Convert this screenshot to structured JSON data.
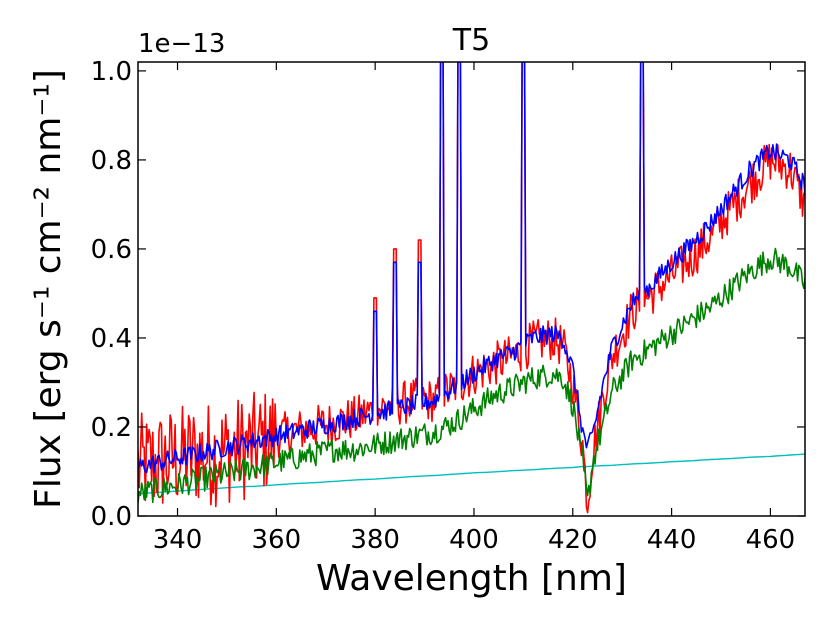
{
  "chart_data": {
    "type": "line",
    "title": "T5",
    "xlabel": "Wavelength [nm]",
    "ylabel": "Flux [erg s⁻¹ cm⁻² nm⁻¹]",
    "y_offset_label": "1e−13",
    "xlim": [
      332,
      467
    ],
    "ylim": [
      0.0,
      1.02
    ],
    "xticks": [
      340,
      360,
      380,
      400,
      420,
      440,
      460
    ],
    "xtick_labels": [
      "340",
      "360",
      "380",
      "400",
      "420",
      "440",
      "460"
    ],
    "yticks": [
      0.0,
      0.2,
      0.4,
      0.6,
      0.8,
      1.0
    ],
    "ytick_labels": [
      "0.0",
      "0.2",
      "0.4",
      "0.6",
      "0.8",
      "1.0"
    ],
    "grid": false,
    "x": [
      332,
      336,
      340,
      344,
      348,
      352,
      356,
      360,
      364,
      368,
      372,
      376,
      380,
      384,
      388,
      392,
      396,
      400,
      404,
      408,
      412,
      416,
      418,
      420,
      422,
      423,
      424,
      426,
      428,
      432,
      436,
      440,
      444,
      448,
      452,
      456,
      460,
      464,
      467
    ],
    "series": [
      {
        "name": "red",
        "color": "#ff0000",
        "values": [
          0.11,
          0.12,
          0.13,
          0.14,
          0.14,
          0.15,
          0.16,
          0.18,
          0.19,
          0.2,
          0.21,
          0.22,
          0.24,
          0.25,
          0.26,
          0.26,
          0.29,
          0.32,
          0.34,
          0.36,
          0.39,
          0.4,
          0.38,
          0.3,
          0.16,
          0.03,
          0.14,
          0.26,
          0.36,
          0.46,
          0.5,
          0.54,
          0.58,
          0.63,
          0.69,
          0.75,
          0.8,
          0.78,
          0.7
        ],
        "spikes": [
          {
            "x": 380,
            "y": 0.49
          },
          {
            "x": 384,
            "y": 0.6
          },
          {
            "x": 389,
            "y": 0.62
          },
          {
            "x": 393.5,
            "y": 1.02
          },
          {
            "x": 397,
            "y": 1.02
          },
          {
            "x": 410,
            "y": 1.02
          },
          {
            "x": 434,
            "y": 1.02
          }
        ]
      },
      {
        "name": "blue",
        "color": "#0000ff",
        "values": [
          0.11,
          0.12,
          0.13,
          0.14,
          0.15,
          0.16,
          0.17,
          0.18,
          0.19,
          0.2,
          0.21,
          0.22,
          0.23,
          0.24,
          0.25,
          0.26,
          0.29,
          0.32,
          0.35,
          0.37,
          0.4,
          0.41,
          0.4,
          0.33,
          0.19,
          0.15,
          0.18,
          0.29,
          0.38,
          0.48,
          0.52,
          0.57,
          0.61,
          0.66,
          0.72,
          0.78,
          0.82,
          0.8,
          0.74
        ],
        "spikes": [
          {
            "x": 380,
            "y": 0.46
          },
          {
            "x": 384,
            "y": 0.57
          },
          {
            "x": 389,
            "y": 0.57
          },
          {
            "x": 393.5,
            "y": 1.02
          },
          {
            "x": 397,
            "y": 1.02
          },
          {
            "x": 410,
            "y": 1.02
          },
          {
            "x": 434,
            "y": 1.02
          }
        ]
      },
      {
        "name": "green",
        "color": "#008000",
        "values": [
          0.05,
          0.06,
          0.07,
          0.08,
          0.09,
          0.1,
          0.11,
          0.12,
          0.13,
          0.14,
          0.15,
          0.15,
          0.16,
          0.17,
          0.18,
          0.19,
          0.21,
          0.24,
          0.27,
          0.29,
          0.31,
          0.32,
          0.31,
          0.25,
          0.12,
          0.03,
          0.12,
          0.2,
          0.28,
          0.35,
          0.38,
          0.41,
          0.44,
          0.47,
          0.51,
          0.55,
          0.58,
          0.56,
          0.52
        ],
        "spikes": []
      },
      {
        "name": "cyan",
        "color": "#00bfbf",
        "values": [
          0.05,
          0.053,
          0.056,
          0.059,
          0.062,
          0.065,
          0.067,
          0.07,
          0.073,
          0.075,
          0.078,
          0.081,
          0.083,
          0.086,
          0.089,
          0.091,
          0.094,
          0.097,
          0.099,
          0.102,
          0.104,
          0.107,
          0.108,
          0.109,
          0.111,
          0.111,
          0.112,
          0.113,
          0.114,
          0.117,
          0.119,
          0.122,
          0.124,
          0.127,
          0.129,
          0.132,
          0.134,
          0.137,
          0.139
        ],
        "spikes": []
      }
    ]
  }
}
